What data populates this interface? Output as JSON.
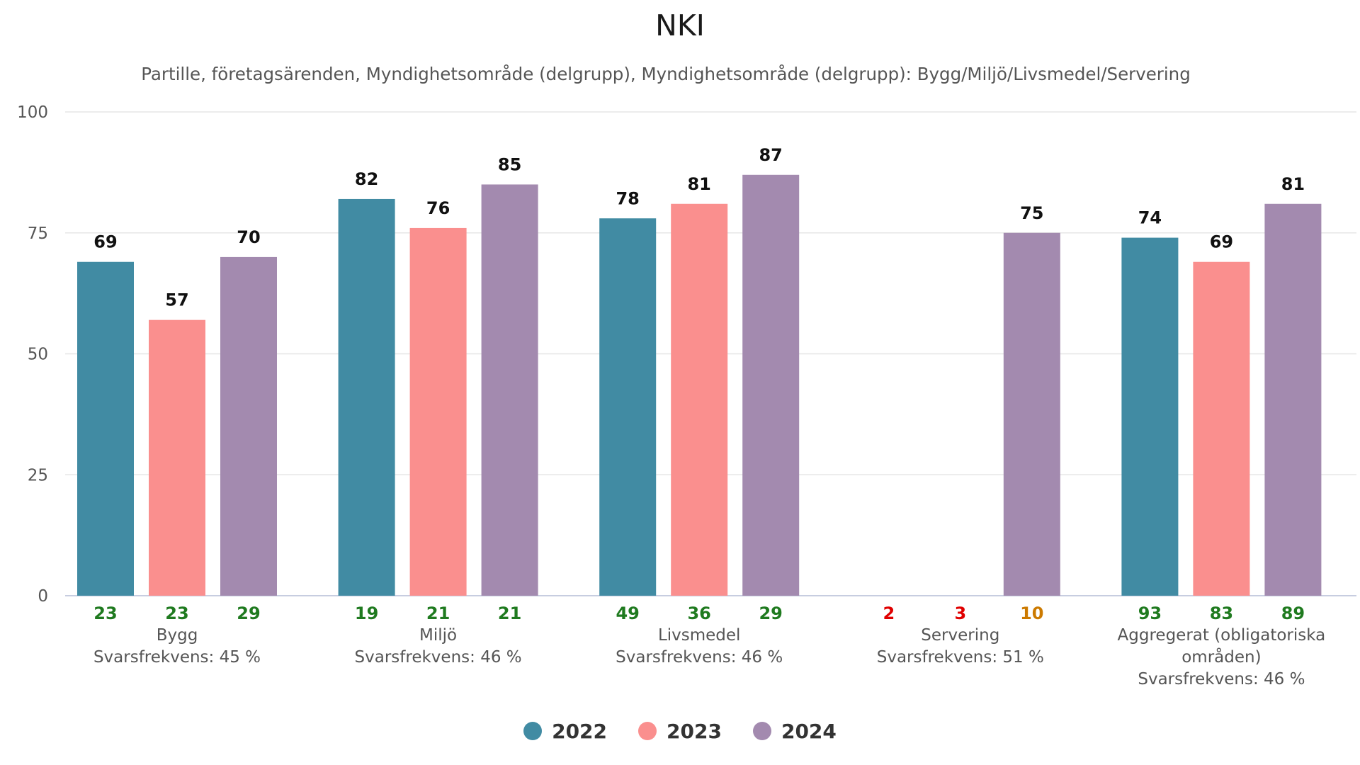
{
  "chart_data": {
    "type": "bar",
    "title": "NKI",
    "subtitle": "Partille, företagsärenden, Myndighetsområde (delgrupp), Myndighetsområde (delgrupp): Bygg/Miljö/Livsmedel/Servering",
    "categories": [
      {
        "name": "Bygg",
        "svarsfrekvens": "Svarsfrekvens: 45 %"
      },
      {
        "name": "Miljö",
        "svarsfrekvens": "Svarsfrekvens: 46 %"
      },
      {
        "name": "Livsmedel",
        "svarsfrekvens": "Svarsfrekvens: 46 %"
      },
      {
        "name": "Servering",
        "svarsfrekvens": "Svarsfrekvens: 51 %"
      },
      {
        "name_lines": [
          "Aggregerat (obligatoriska",
          "områden)"
        ],
        "svarsfrekvens": "Svarsfrekvens: 46 %"
      }
    ],
    "series": [
      {
        "name": "2022",
        "color": "#418ba3",
        "values": [
          69,
          82,
          78,
          null,
          74
        ],
        "counts": [
          23,
          19,
          49,
          2,
          93
        ]
      },
      {
        "name": "2023",
        "color": "#fa8f8e",
        "values": [
          57,
          76,
          81,
          null,
          69
        ],
        "counts": [
          23,
          21,
          36,
          3,
          83
        ]
      },
      {
        "name": "2024",
        "color": "#a38aaf",
        "values": [
          70,
          85,
          87,
          75,
          81
        ],
        "counts": [
          29,
          21,
          29,
          10,
          89
        ]
      }
    ],
    "count_colors": {
      "high": "#1f7a1f",
      "medium": "#cc7a00",
      "low": "#e00000"
    },
    "ylim": [
      0,
      100
    ],
    "yticks": [
      0,
      25,
      50,
      75,
      100
    ],
    "grid": true,
    "legend_position": "bottom-center"
  }
}
